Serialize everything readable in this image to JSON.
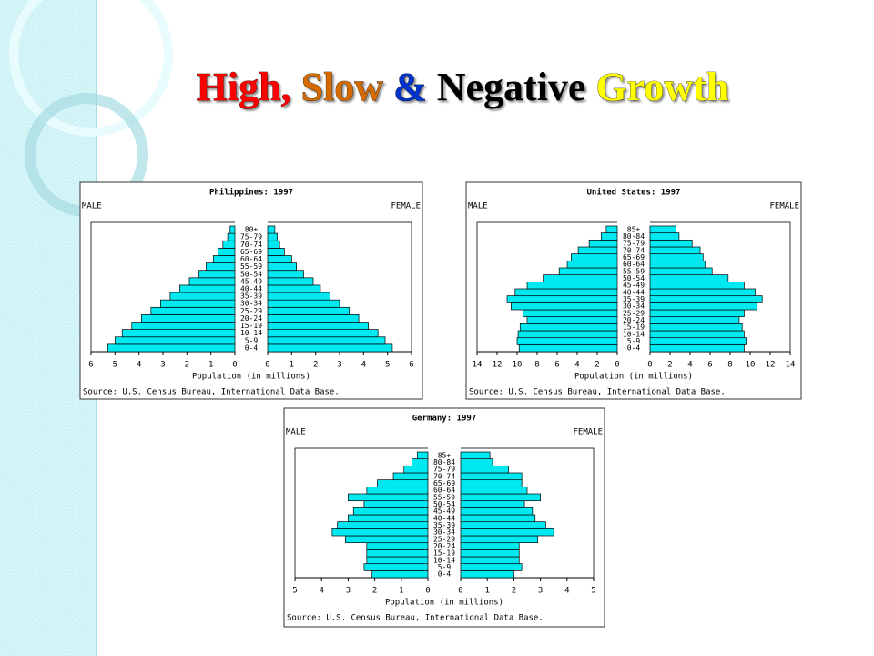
{
  "slide": {
    "title_parts": [
      {
        "text": "High,",
        "color": "#ff0000"
      },
      {
        "text": "Slow",
        "color": "#d46a00"
      },
      {
        "text": "&",
        "color": "#0033cc"
      },
      {
        "text": "Negative",
        "color": "#000000"
      },
      {
        "text": "Growth",
        "color": "#ffff00"
      }
    ]
  },
  "chart_data": [
    {
      "type": "pyramid",
      "title": "Philippines: 1997",
      "left_label": "MALE",
      "right_label": "FEMALE",
      "x_label": "Population (in millions)",
      "source": "Source: U.S. Census Bureau, International Data Base.",
      "categories": [
        "0-4",
        "5-9",
        "10-14",
        "15-19",
        "20-24",
        "25-29",
        "30-34",
        "35-39",
        "40-44",
        "45-49",
        "50-54",
        "55-59",
        "60-64",
        "65-69",
        "70-74",
        "75-79",
        "80+"
      ],
      "series": [
        {
          "name": "MALE",
          "color": "#00e8f0",
          "values": [
            5.3,
            5.0,
            4.7,
            4.3,
            3.9,
            3.5,
            3.1,
            2.7,
            2.3,
            1.9,
            1.5,
            1.2,
            0.9,
            0.7,
            0.5,
            0.3,
            0.2
          ]
        },
        {
          "name": "FEMALE",
          "color": "#00e8f0",
          "values": [
            5.2,
            4.9,
            4.6,
            4.2,
            3.8,
            3.4,
            3.0,
            2.6,
            2.2,
            1.9,
            1.5,
            1.2,
            1.0,
            0.7,
            0.5,
            0.4,
            0.3
          ]
        }
      ],
      "xlim": [
        0,
        6
      ],
      "xticks": [
        0,
        1,
        2,
        3,
        4,
        5,
        6
      ]
    },
    {
      "type": "pyramid",
      "title": "United States: 1997",
      "left_label": "MALE",
      "right_label": "FEMALE",
      "x_label": "Population (in millions)",
      "source": "Source: U.S. Census Bureau, International Data Base.",
      "categories": [
        "0-4",
        "5-9",
        "10-14",
        "15-19",
        "20-24",
        "25-29",
        "30-34",
        "35-39",
        "40-44",
        "45-49",
        "50-54",
        "55-59",
        "60-64",
        "65-69",
        "70-74",
        "75-79",
        "80-84",
        "85+"
      ],
      "series": [
        {
          "name": "MALE",
          "color": "#00e8f0",
          "values": [
            9.8,
            10.0,
            9.9,
            9.7,
            9.0,
            9.4,
            10.6,
            11.0,
            10.2,
            9.0,
            7.4,
            5.8,
            5.0,
            4.6,
            3.9,
            2.8,
            1.6,
            1.1
          ]
        },
        {
          "name": "FEMALE",
          "color": "#00e8f0",
          "values": [
            9.4,
            9.6,
            9.4,
            9.2,
            8.9,
            9.4,
            10.7,
            11.2,
            10.5,
            9.4,
            7.8,
            6.2,
            5.5,
            5.3,
            5.0,
            4.2,
            2.9,
            2.6
          ]
        }
      ],
      "xlim": [
        0,
        14
      ],
      "xticks": [
        0,
        2,
        4,
        6,
        8,
        10,
        12,
        14
      ]
    },
    {
      "type": "pyramid",
      "title": "Germany: 1997",
      "left_label": "MALE",
      "right_label": "FEMALE",
      "x_label": "Population (in millions)",
      "source": "Source: U.S. Census Bureau, International Data Base.",
      "categories": [
        "0-4",
        "5-9",
        "10-14",
        "15-19",
        "20-24",
        "25-29",
        "30-34",
        "35-39",
        "40-44",
        "45-49",
        "50-54",
        "55-59",
        "60-64",
        "65-69",
        "70-74",
        "75-79",
        "80-84",
        "85+"
      ],
      "series": [
        {
          "name": "MALE",
          "color": "#00e8f0",
          "values": [
            2.1,
            2.4,
            2.3,
            2.3,
            2.3,
            3.1,
            3.6,
            3.4,
            3.0,
            2.8,
            2.4,
            3.0,
            2.3,
            1.9,
            1.3,
            0.9,
            0.6,
            0.4
          ]
        },
        {
          "name": "FEMALE",
          "color": "#00e8f0",
          "values": [
            2.0,
            2.3,
            2.2,
            2.2,
            2.2,
            2.9,
            3.5,
            3.2,
            2.8,
            2.7,
            2.4,
            3.0,
            2.5,
            2.3,
            2.3,
            1.8,
            1.2,
            1.1
          ]
        }
      ],
      "xlim": [
        0,
        5
      ],
      "xticks": [
        0,
        1,
        2,
        3,
        4,
        5
      ]
    }
  ]
}
